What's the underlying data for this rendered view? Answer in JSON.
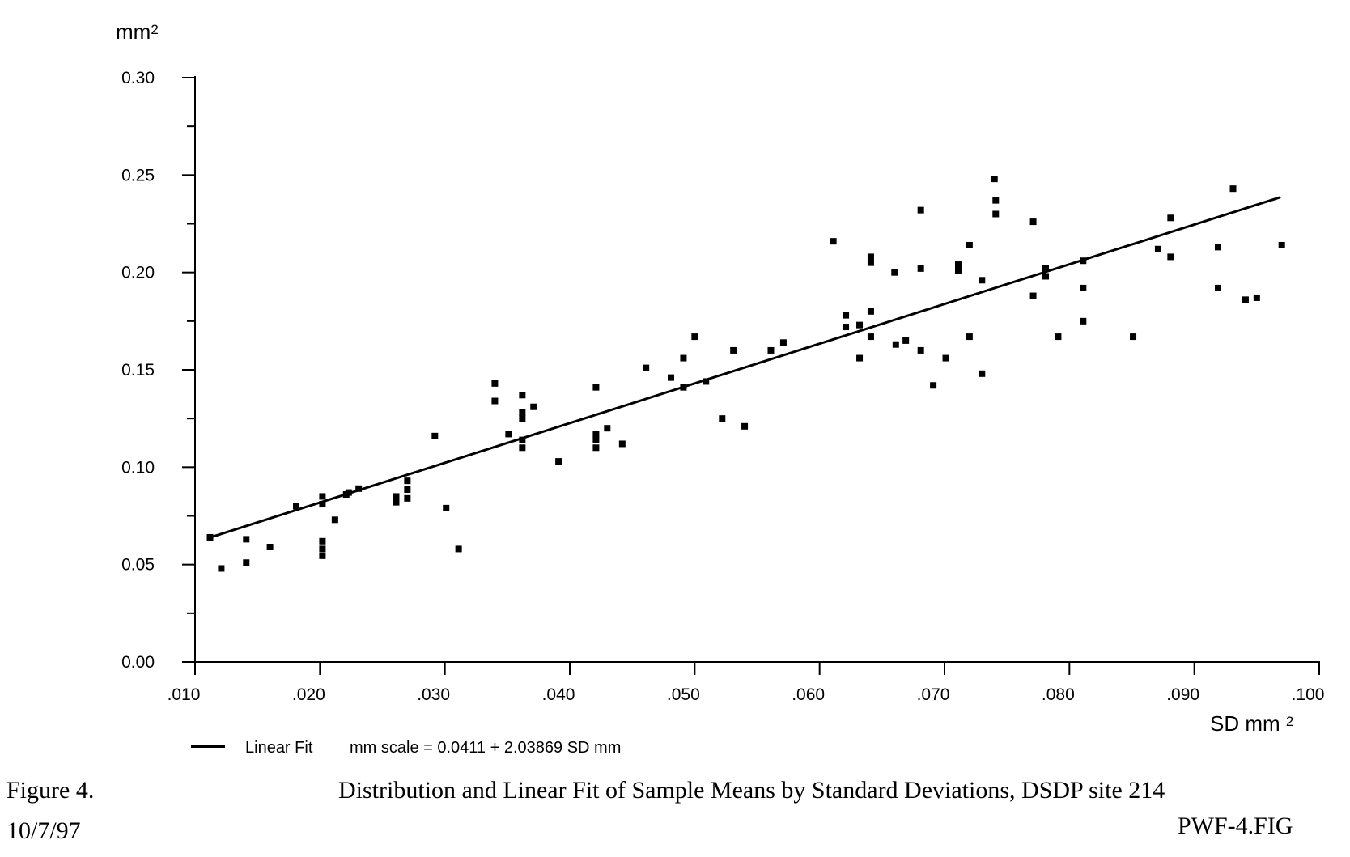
{
  "figure": {
    "figure_label": "Figure 4.",
    "date": "10/7/97",
    "title": "Distribution and Linear Fit of Sample Means by Standard Deviations, DSDP site 214",
    "file_label": "PWF-4.FIG"
  },
  "legend": {
    "line_label": "Linear Fit",
    "equation": "mm scale = 0.0411 + 2.03869 SD mm"
  },
  "axes": {
    "y_unit_label": "mm",
    "y_unit_sup": "2",
    "x_unit_label": "SD mm",
    "x_unit_sup": "2"
  },
  "chart_data": {
    "type": "scatter",
    "title": "Distribution and Linear Fit of Sample Means by Standard Deviations, DSDP site 214",
    "xlabel": "SD mm^2",
    "ylabel": "mm^2",
    "xlim": [
      0.01,
      0.1
    ],
    "ylim": [
      0.0,
      0.3
    ],
    "grid": false,
    "marker": "filled-black-square",
    "marker_color": "#000000",
    "x_ticks": [
      0.01,
      0.02,
      0.03,
      0.04,
      0.05,
      0.06,
      0.07,
      0.08,
      0.09,
      0.1
    ],
    "x_tick_labels": [
      ".010",
      ".020",
      ".030",
      ".040",
      ".050",
      ".060",
      ".070",
      ".080",
      ".090",
      ".100"
    ],
    "y_ticks": [
      0.0,
      0.05,
      0.1,
      0.15,
      0.2,
      0.25,
      0.3
    ],
    "y_tick_labels": [
      "0.00",
      "0.05",
      "0.10",
      "0.15",
      "0.20",
      "0.25",
      "0.30"
    ],
    "y_minor_tick_step": 0.025,
    "fit_line": {
      "label": "Linear Fit",
      "equation": "mm scale = 0.0411 + 2.03869 SD mm",
      "intercept": 0.0411,
      "slope": 2.03869,
      "x_start": 0.0112,
      "x_end": 0.0969
    },
    "points": [
      [
        0.0112,
        0.064
      ],
      [
        0.0121,
        0.048
      ],
      [
        0.0141,
        0.063
      ],
      [
        0.0141,
        0.051
      ],
      [
        0.016,
        0.059
      ],
      [
        0.0181,
        0.08
      ],
      [
        0.0202,
        0.085
      ],
      [
        0.0202,
        0.081
      ],
      [
        0.0202,
        0.062
      ],
      [
        0.0202,
        0.058
      ],
      [
        0.0202,
        0.0545
      ],
      [
        0.0212,
        0.073
      ],
      [
        0.0221,
        0.086
      ],
      [
        0.0223,
        0.087
      ],
      [
        0.0231,
        0.089
      ],
      [
        0.0261,
        0.085
      ],
      [
        0.0261,
        0.082
      ],
      [
        0.027,
        0.093
      ],
      [
        0.027,
        0.0885
      ],
      [
        0.027,
        0.084
      ],
      [
        0.0292,
        0.116
      ],
      [
        0.0301,
        0.079
      ],
      [
        0.0311,
        0.058
      ],
      [
        0.034,
        0.143
      ],
      [
        0.034,
        0.134
      ],
      [
        0.0351,
        0.117
      ],
      [
        0.0362,
        0.137
      ],
      [
        0.0362,
        0.128
      ],
      [
        0.0362,
        0.125
      ],
      [
        0.0362,
        0.114
      ],
      [
        0.0362,
        0.11
      ],
      [
        0.0371,
        0.131
      ],
      [
        0.0391,
        0.103
      ],
      [
        0.0421,
        0.141
      ],
      [
        0.0421,
        0.117
      ],
      [
        0.0421,
        0.114
      ],
      [
        0.0421,
        0.11
      ],
      [
        0.043,
        0.12
      ],
      [
        0.0442,
        0.112
      ],
      [
        0.0461,
        0.151
      ],
      [
        0.0481,
        0.146
      ],
      [
        0.0491,
        0.156
      ],
      [
        0.0491,
        0.141
      ],
      [
        0.05,
        0.167
      ],
      [
        0.0509,
        0.144
      ],
      [
        0.0522,
        0.125
      ],
      [
        0.0531,
        0.16
      ],
      [
        0.054,
        0.121
      ],
      [
        0.0561,
        0.16
      ],
      [
        0.0571,
        0.164
      ],
      [
        0.0611,
        0.216
      ],
      [
        0.0621,
        0.178
      ],
      [
        0.0621,
        0.172
      ],
      [
        0.0632,
        0.173
      ],
      [
        0.0632,
        0.156
      ],
      [
        0.0641,
        0.208
      ],
      [
        0.0641,
        0.205
      ],
      [
        0.0641,
        0.18
      ],
      [
        0.0641,
        0.167
      ],
      [
        0.066,
        0.2
      ],
      [
        0.0661,
        0.163
      ],
      [
        0.0669,
        0.165
      ],
      [
        0.0681,
        0.232
      ],
      [
        0.0681,
        0.202
      ],
      [
        0.0681,
        0.16
      ],
      [
        0.0691,
        0.142
      ],
      [
        0.0701,
        0.156
      ],
      [
        0.0711,
        0.204
      ],
      [
        0.0711,
        0.201
      ],
      [
        0.072,
        0.214
      ],
      [
        0.072,
        0.167
      ],
      [
        0.073,
        0.196
      ],
      [
        0.073,
        0.148
      ],
      [
        0.074,
        0.248
      ],
      [
        0.0741,
        0.237
      ],
      [
        0.0741,
        0.23
      ],
      [
        0.0771,
        0.226
      ],
      [
        0.0771,
        0.188
      ],
      [
        0.0781,
        0.202
      ],
      [
        0.0781,
        0.198
      ],
      [
        0.0791,
        0.167
      ],
      [
        0.0811,
        0.206
      ],
      [
        0.0811,
        0.192
      ],
      [
        0.0811,
        0.175
      ],
      [
        0.0851,
        0.167
      ],
      [
        0.0871,
        0.212
      ],
      [
        0.0881,
        0.228
      ],
      [
        0.0881,
        0.208
      ],
      [
        0.0919,
        0.213
      ],
      [
        0.0919,
        0.192
      ],
      [
        0.0931,
        0.243
      ],
      [
        0.0941,
        0.186
      ],
      [
        0.095,
        0.187
      ],
      [
        0.097,
        0.214
      ]
    ]
  }
}
